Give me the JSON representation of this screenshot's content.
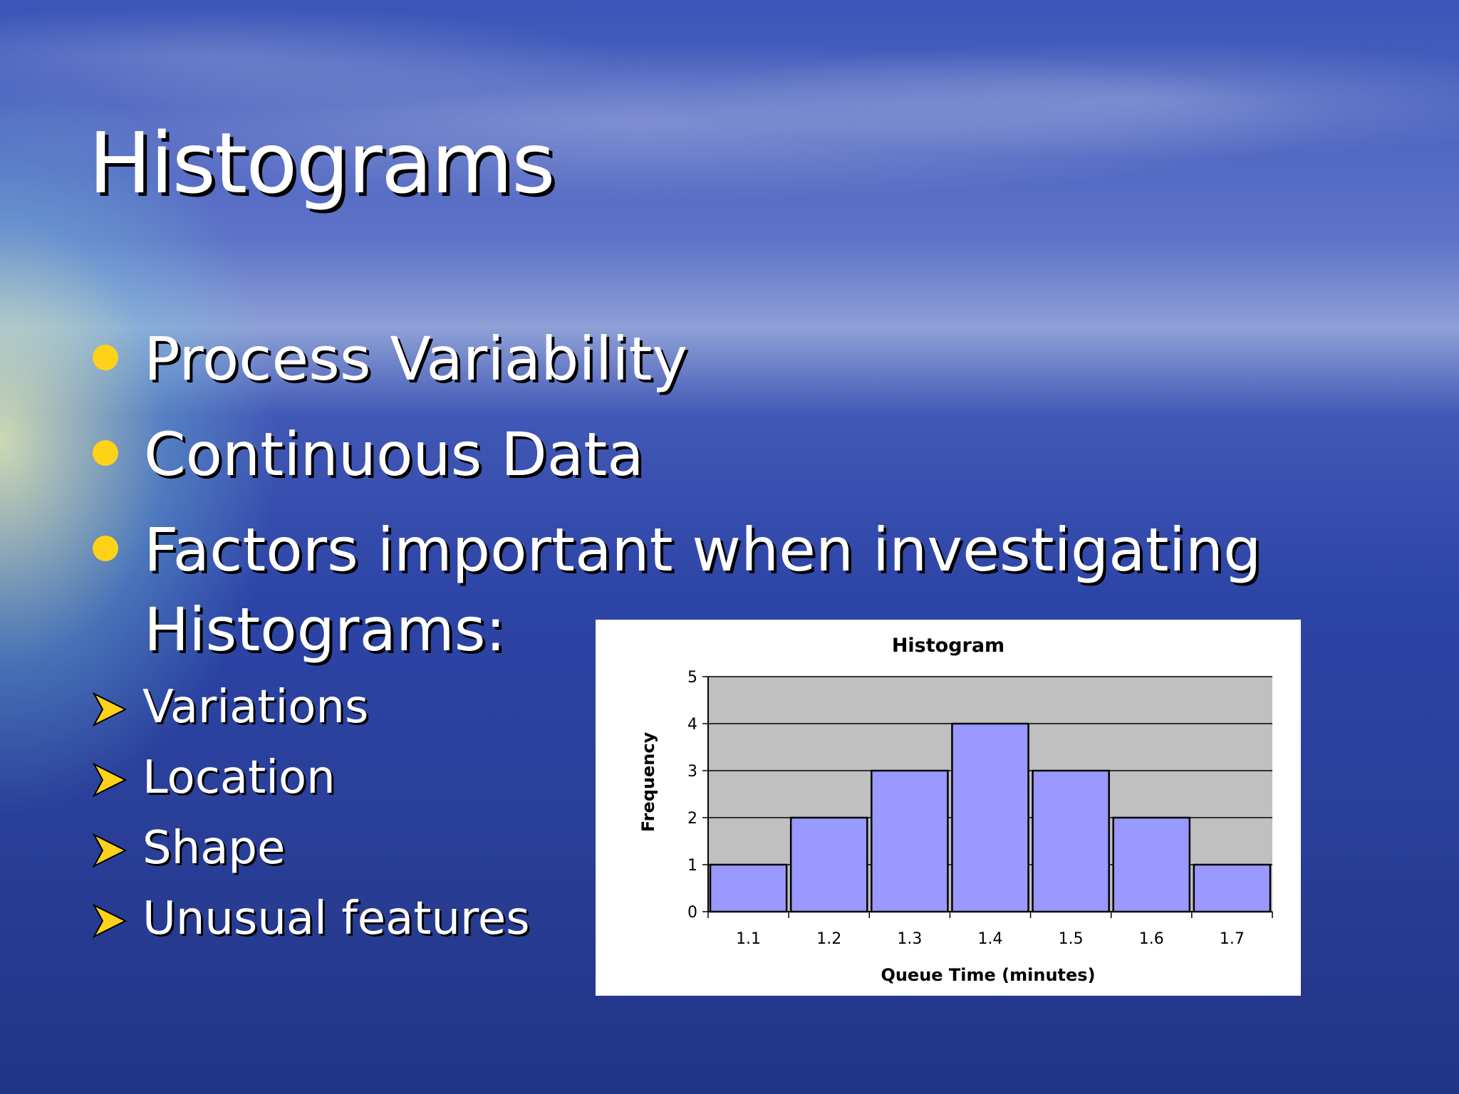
{
  "slide": {
    "title": "Histograms",
    "bullets": [
      "Process Variability",
      "Continuous Data",
      "Factors important when investigating Histograms:"
    ],
    "sub_bullets": [
      "Variations",
      "Location",
      "Shape",
      "Unusual features"
    ]
  },
  "colors": {
    "bullet": "#ffd21a",
    "bar_fill": "#9999ff",
    "plot_background": "#c0c0c0"
  },
  "chart_data": {
    "type": "bar",
    "title": "Histogram",
    "xlabel": "Queue Time (minutes)",
    "ylabel": "Frequency",
    "categories": [
      "1.1",
      "1.2",
      "1.3",
      "1.4",
      "1.5",
      "1.6",
      "1.7"
    ],
    "values": [
      1,
      2,
      3,
      4,
      3,
      2,
      1
    ],
    "ylim": [
      0,
      5
    ],
    "yticks": [
      "0",
      "1",
      "2",
      "3",
      "4",
      "5"
    ],
    "grid": true,
    "legend": "none"
  }
}
